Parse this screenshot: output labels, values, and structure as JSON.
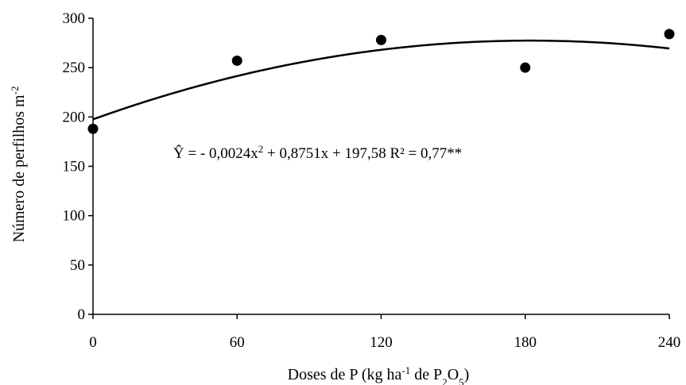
{
  "chart_data": {
    "type": "scatter",
    "title": "",
    "xlabel": "Doses de P (kg ha-1 de P2O5)",
    "xlabel_parts": [
      "Doses de P (kg ha",
      "-1",
      " de P",
      "2",
      "O",
      "5",
      ")"
    ],
    "ylabel": "Número de perfilhos m-2",
    "ylabel_parts": [
      "Número de perfilhos m",
      "-2"
    ],
    "xlim": [
      0,
      240
    ],
    "ylim": [
      0,
      300
    ],
    "x_ticks": [
      0,
      60,
      120,
      180,
      240
    ],
    "y_ticks": [
      0,
      50,
      100,
      150,
      200,
      250,
      300
    ],
    "grid": false,
    "series": [
      {
        "x": [
          0,
          60,
          120,
          180,
          240
        ],
        "values": [
          188,
          257,
          278,
          250,
          284
        ],
        "color": "#000000"
      }
    ],
    "trendline": {
      "type": "quadratic",
      "coefficients": {
        "a": -0.0024,
        "b": 0.8751,
        "c": 197.58
      },
      "color": "#000000"
    },
    "annotation": {
      "parts": [
        "Ŷ = - 0,0024x",
        "2",
        " + 0,8751x + 197,58   R² = 0,77**"
      ]
    }
  }
}
